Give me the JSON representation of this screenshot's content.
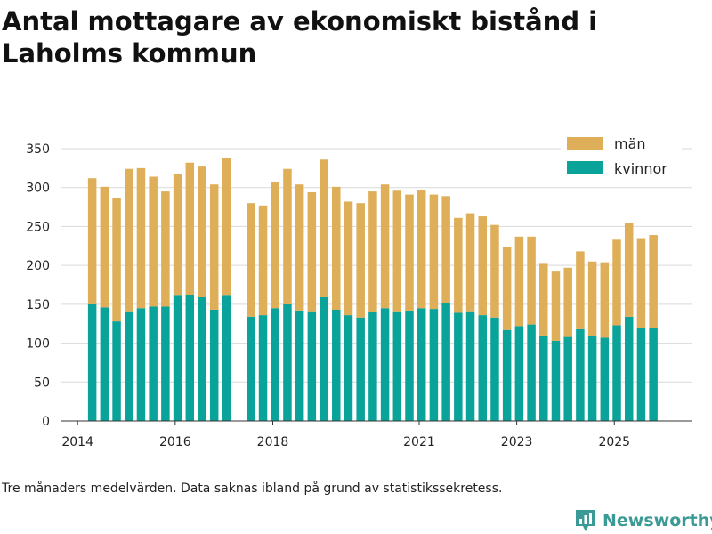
{
  "title": "Antal mottagare av ekonomiskt bistånd i Laholms kommun",
  "footnote": "Tre månaders medelvärden. Data saknas ibland på grund av statistikssekretess.",
  "brand": {
    "name": "Newsworthy",
    "color": "#3b9a95"
  },
  "colors": {
    "kvinnor": "#0aa39a",
    "man": "#deae58",
    "grid": "#d9d9d9",
    "axis": "#333333"
  },
  "chart_data": {
    "type": "bar",
    "stacked": true,
    "title": "Antal mottagare av ekonomiskt bistånd i Laholms kommun",
    "xlabel": "",
    "ylabel": "",
    "ylim": [
      0,
      350
    ],
    "yticks": [
      0,
      50,
      100,
      150,
      200,
      250,
      300,
      350
    ],
    "xlim": [
      2013.65,
      2026.6
    ],
    "xticks": [
      {
        "label": "2014",
        "value": 2014.0
      },
      {
        "label": "2016",
        "value": 2016.0
      },
      {
        "label": "2018",
        "value": 2018.0
      },
      {
        "label": "2021",
        "value": 2021.0
      },
      {
        "label": "2023",
        "value": 2023.0
      },
      {
        "label": "2025",
        "value": 2025.0
      }
    ],
    "grid": true,
    "legend_position": "top-right",
    "series": [
      {
        "name": "kvinnor",
        "values": [
          150,
          146,
          128,
          141,
          145,
          147,
          147,
          161,
          162,
          159,
          143,
          161,
          134,
          136,
          145,
          150,
          142,
          141,
          159,
          143,
          136,
          133,
          140,
          145,
          141,
          142,
          145,
          144,
          151,
          139,
          141,
          136,
          133,
          117,
          122,
          124,
          110,
          103,
          108,
          118,
          109,
          107,
          123,
          134,
          120,
          120
        ]
      },
      {
        "name": "män",
        "values": [
          162,
          155,
          159,
          183,
          180,
          167,
          148,
          157,
          170,
          168,
          161,
          177,
          146,
          141,
          162,
          174,
          162,
          153,
          177,
          158,
          146,
          147,
          155,
          159,
          155,
          149,
          152,
          147,
          138,
          122,
          126,
          127,
          119,
          107,
          115,
          113,
          92,
          89,
          89,
          100,
          96,
          97,
          110,
          121,
          115,
          119
        ]
      }
    ],
    "x": [
      2014.3,
      2014.55,
      2014.8,
      2015.05,
      2015.3,
      2015.55,
      2015.8,
      2016.05,
      2016.3,
      2016.55,
      2016.8,
      2017.05,
      2017.55,
      2017.8,
      2018.05,
      2018.3,
      2018.55,
      2018.8,
      2019.05,
      2019.3,
      2019.55,
      2019.8,
      2020.05,
      2020.3,
      2020.55,
      2020.8,
      2021.05,
      2021.3,
      2021.55,
      2021.8,
      2022.05,
      2022.3,
      2022.55,
      2022.8,
      2023.05,
      2023.3,
      2023.55,
      2023.8,
      2024.05,
      2024.3,
      2024.55,
      2024.8,
      2025.05,
      2025.3,
      2025.55,
      2025.8
    ],
    "totals": [
      312,
      301,
      287,
      324,
      325,
      314,
      295,
      318,
      332,
      327,
      304,
      338,
      280,
      277,
      307,
      324,
      304,
      294,
      336,
      301,
      282,
      280,
      295,
      304,
      296,
      291,
      297,
      291,
      289,
      261,
      267,
      263,
      252,
      224,
      237,
      237,
      202,
      192,
      197,
      218,
      205,
      204,
      233,
      255,
      235,
      239
    ]
  }
}
